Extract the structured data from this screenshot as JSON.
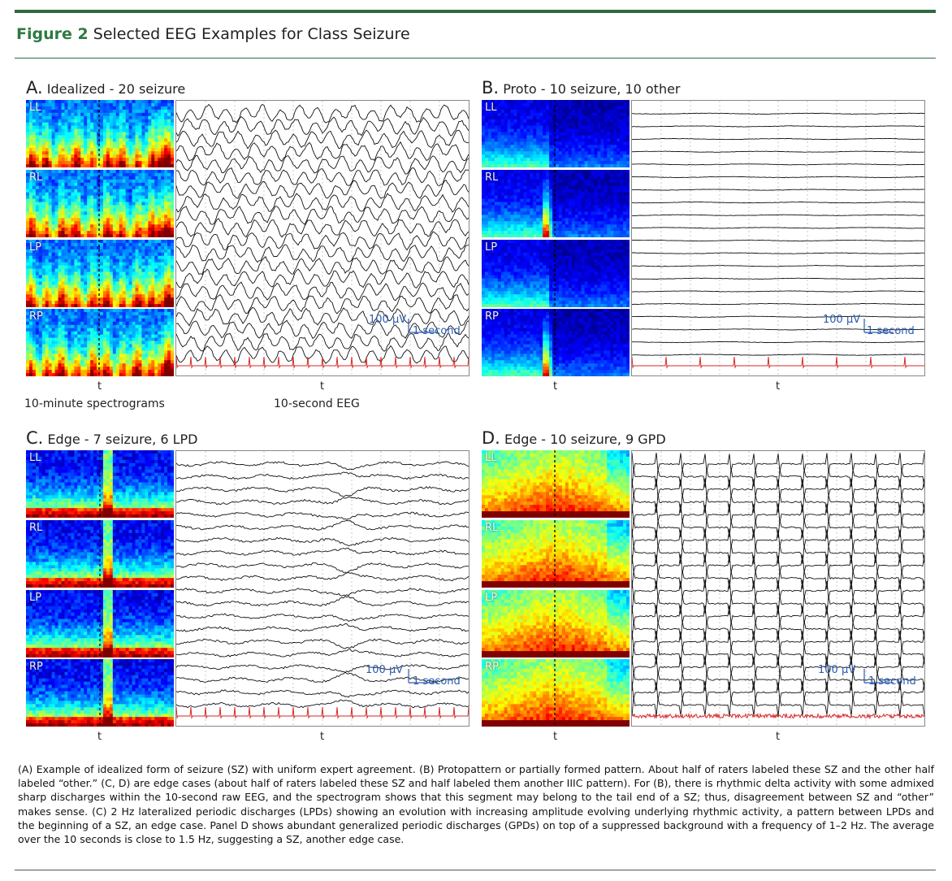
{
  "figure": {
    "label": "Figure 2",
    "title": "Selected EEG Examples for Class Seizure"
  },
  "panels": [
    {
      "letter": "A.",
      "title": "Idealized - 20 seizure",
      "style": "idealized",
      "channels": [
        "LL",
        "RL",
        "LP",
        "RP"
      ],
      "t_label": "t",
      "scale_amplitude": "100 μV",
      "scale_time": "1 second",
      "spec_caption": "10-minute spectrograms",
      "eeg_caption": "10-second EEG"
    },
    {
      "letter": "B.",
      "title": "Proto - 10 seizure, 10 other",
      "style": "proto",
      "channels": [
        "LL",
        "RL",
        "LP",
        "RP"
      ],
      "t_label": "t",
      "scale_amplitude": "100 μV",
      "scale_time": "1 second"
    },
    {
      "letter": "C.",
      "title": "Edge - 7 seizure, 6 LPD",
      "style": "edge-lpd",
      "channels": [
        "LL",
        "RL",
        "LP",
        "RP"
      ],
      "t_label": "t",
      "scale_amplitude": "100 μV",
      "scale_time": "1 second"
    },
    {
      "letter": "D.",
      "title": "Edge - 10 seizure, 9 GPD",
      "style": "edge-gpd",
      "channels": [
        "LL",
        "RL",
        "LP",
        "RP"
      ],
      "t_label": "t",
      "scale_amplitude": "100 μV",
      "scale_time": "1 second"
    }
  ],
  "caption": "(A) Example of idealized form of seizure (SZ) with uniform expert agreement. (B) Protopattern or partially formed pattern. About half of raters labeled these SZ and the other half labeled “other.” (C, D) are edge cases (about half of raters labeled these SZ and half labeled them another IIIC pattern). For (B), there is rhythmic delta activity with some admixed sharp discharges within the 10-second raw EEG, and the spectrogram shows that this segment may belong to the tail end of a SZ; thus, disagreement between SZ and “other” makes sense. (C) 2 Hz lateralized periodic discharges (LPDs) showing an evolution with increasing amplitude evolving underlying rhythmic activity, a pattern between LPDs and the beginning of a SZ, an edge case. Panel D shows abundant generalized periodic discharges (GPDs) on top of a suppressed background with a frequency of 1–2 Hz. The average over the 10 seconds is close to 1.5 Hz, suggesting a SZ, another edge case.",
  "colors": {
    "accent_green": "#2e7a3f",
    "eeg_trace": "#111111",
    "ekg_trace": "#d62a2a",
    "scale_blue": "#2a5db0"
  }
}
